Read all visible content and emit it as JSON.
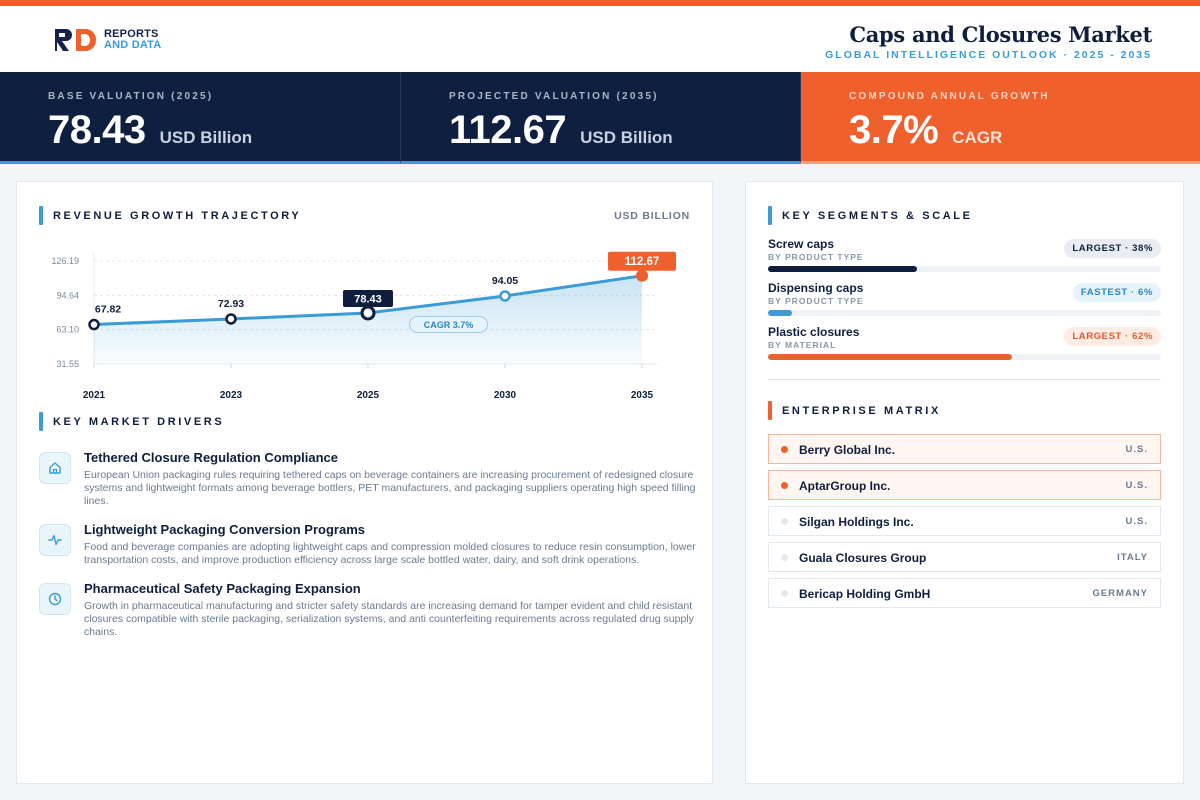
{
  "brand": {
    "logo_line1": "REPORTS",
    "logo_line2": "AND DATA"
  },
  "header": {
    "title": "Caps and Closures Market",
    "subtitle": "GLOBAL INTELLIGENCE OUTLOOK · 2025 - 2035"
  },
  "kpis": [
    {
      "label": "BASE VALUATION (2025)",
      "value": "78.43",
      "unit": "USD Billion"
    },
    {
      "label": "PROJECTED VALUATION (2035)",
      "value": "112.67",
      "unit": "USD Billion"
    },
    {
      "label": "COMPOUND ANNUAL GROWTH",
      "value": "3.7%",
      "unit": "CAGR"
    }
  ],
  "revenue": {
    "heading": "REVENUE GROWTH TRAJECTORY",
    "unit_label": "USD BILLION"
  },
  "chart_data": {
    "type": "area",
    "title": "REVENUE GROWTH TRAJECTORY",
    "ylabel": "USD BILLION",
    "categories": [
      "2021",
      "2023",
      "2025",
      "2030",
      "2035"
    ],
    "values": [
      67.82,
      72.93,
      78.43,
      94.05,
      112.67
    ],
    "labels": [
      "67.82",
      "72.93",
      "78.43",
      "94.05",
      "112.67"
    ],
    "y_ticks": [
      "126.19",
      "94.64",
      "63.10",
      "31.55"
    ],
    "ylim": [
      31.55,
      126.19
    ],
    "annotation": "CAGR 3.7%",
    "grid": true,
    "highlight": {
      "2025": "dark",
      "2035": "orange"
    },
    "colors": {
      "line": "#3a9bd5",
      "dark": "#0f1e3c",
      "accent": "#f0602d"
    }
  },
  "drivers": {
    "heading": "KEY MARKET DRIVERS",
    "items": [
      {
        "icon": "home-icon",
        "title": "Tethered Closure Regulation Compliance",
        "desc": "European Union packaging rules requiring tethered caps on beverage containers are increasing procurement of redesigned closure systems and lightweight formats among beverage bottlers, PET manufacturers, and packaging suppliers operating high speed filling lines."
      },
      {
        "icon": "activity-icon",
        "title": "Lightweight Packaging Conversion Programs",
        "desc": "Food and beverage companies are adopting lightweight caps and compression molded closures to reduce resin consumption, lower transportation costs, and improve production efficiency across large scale bottled water, dairy, and soft drink operations."
      },
      {
        "icon": "clock-icon",
        "title": "Pharmaceutical Safety Packaging Expansion",
        "desc": "Growth in pharmaceutical manufacturing and stricter safety standards are increasing demand for tamper evident and child resistant closures compatible with sterile packaging, serialization systems, and anti counterfeiting requirements across regulated drug supply chains."
      }
    ]
  },
  "segments": {
    "heading": "KEY SEGMENTS & SCALE",
    "items": [
      {
        "name": "Screw caps",
        "sub": "BY PRODUCT TYPE",
        "badge": "LARGEST · 38%",
        "share": 0.38,
        "color": "#0f1e3c",
        "badge_style": "dark"
      },
      {
        "name": "Dispensing caps",
        "sub": "BY PRODUCT TYPE",
        "badge": "FASTEST · 6%",
        "share": 0.06,
        "color": "#3a9bd5",
        "badge_style": "blue"
      },
      {
        "name": "Plastic closures",
        "sub": "BY MATERIAL",
        "badge": "LARGEST · 62%",
        "share": 0.62,
        "color": "#f0602d",
        "badge_style": "orange"
      }
    ]
  },
  "matrix": {
    "heading": "ENTERPRISE MATRIX",
    "rows": [
      {
        "name": "Berry Global Inc.",
        "country": "U.S.",
        "highlight": true
      },
      {
        "name": "AptarGroup Inc.",
        "country": "U.S.",
        "highlight": true
      },
      {
        "name": "Silgan Holdings Inc.",
        "country": "U.S.",
        "highlight": false
      },
      {
        "name": "Guala Closures Group",
        "country": "ITALY",
        "highlight": false
      },
      {
        "name": "Bericap Holding GmbH",
        "country": "GERMANY",
        "highlight": false
      }
    ]
  }
}
